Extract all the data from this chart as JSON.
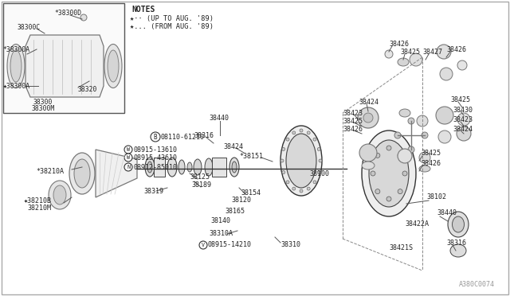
{
  "bg_color": "#ffffff",
  "text_color": "#222222",
  "line_color": "#555555",
  "diagram_color": "#777777",
  "watermark": "A380C0074",
  "notes_line1": "NOTES",
  "notes_line2": "★·· (UP TO AUG. '89)",
  "notes_line3": "★... (FROM AUG. '89)"
}
